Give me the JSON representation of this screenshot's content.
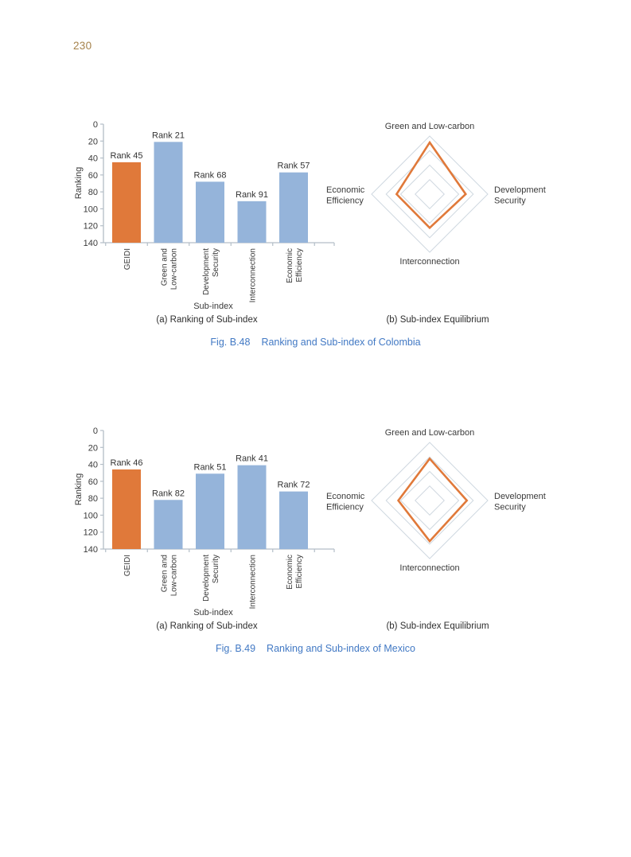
{
  "page": {
    "number": "230"
  },
  "colors": {
    "accent_orange": "#e0793a",
    "bar_blue": "#95b4da",
    "grid_line": "#cfd8e0",
    "axis_line": "#b4bec7",
    "text_dark": "#3a3a3a",
    "caption_blue": "#4279c4",
    "page_number": "#a5824b"
  },
  "figures": [
    {
      "caption_label": "Fig. B.48",
      "caption_text": "Ranking and Sub-index of Colombia",
      "subcaption_a": "(a) Ranking of Sub-index",
      "subcaption_b": "(b) Sub-index Equilibrium"
    },
    {
      "caption_label": "Fig. B.49",
      "caption_text": "Ranking and Sub-index of Mexico",
      "subcaption_a": "(a) Ranking of Sub-index",
      "subcaption_b": "(b) Sub-index Equilibrium"
    }
  ],
  "chart_data": [
    {
      "id": "colombia-bar",
      "type": "bar",
      "title": "",
      "xlabel": "Sub-index",
      "ylabel": "Ranking",
      "categories": [
        "GEIDI",
        "Green and Low-carbon",
        "Development Security",
        "Interconnection",
        "Economic Efficiency"
      ],
      "category_lines": [
        [
          "GEIDI"
        ],
        [
          "Green and",
          "Low-carbon"
        ],
        [
          "Development",
          "Security"
        ],
        [
          "Interconnection"
        ],
        [
          "Economic",
          "Efficiency"
        ]
      ],
      "values": [
        45,
        21,
        68,
        91,
        57
      ],
      "bar_labels": [
        "Rank 45",
        "Rank 21",
        "Rank 68",
        "Rank 91",
        "Rank 57"
      ],
      "yticks": [
        0,
        20,
        40,
        60,
        80,
        100,
        120,
        140
      ],
      "ylim": [
        0,
        140
      ],
      "y_inverted": true,
      "grid": false,
      "bar_colors": [
        "#e0793a",
        "#95b4da",
        "#95b4da",
        "#95b4da",
        "#95b4da"
      ]
    },
    {
      "id": "colombia-radar",
      "type": "radar",
      "axes": [
        "Green and Low-carbon",
        "Development Security",
        "Interconnection",
        "Economic Efficiency"
      ],
      "axis_lines": [
        [
          "Green and Low-carbon"
        ],
        [
          "Development",
          "Security"
        ],
        [
          "Interconnection"
        ],
        [
          "Economic",
          "Efficiency"
        ]
      ],
      "values": [
        0.89,
        0.62,
        0.58,
        0.57
      ],
      "value_max": 1.0,
      "grid_levels": [
        0.25,
        0.5,
        0.75,
        1.0
      ],
      "line_color": "#e0793a"
    },
    {
      "id": "mexico-bar",
      "type": "bar",
      "title": "",
      "xlabel": "Sub-index",
      "ylabel": "Ranking",
      "categories": [
        "GEIDI",
        "Green and Low-carbon",
        "Development Security",
        "Interconnection",
        "Economic Efficiency"
      ],
      "category_lines": [
        [
          "GEIDI"
        ],
        [
          "Green and",
          "Low-carbon"
        ],
        [
          "Development",
          "Security"
        ],
        [
          "Interconnection"
        ],
        [
          "Economic",
          "Efficiency"
        ]
      ],
      "values": [
        46,
        82,
        51,
        41,
        72
      ],
      "bar_labels": [
        "Rank 46",
        "Rank 82",
        "Rank 51",
        "Rank 41",
        "Rank 72"
      ],
      "yticks": [
        0,
        20,
        40,
        60,
        80,
        100,
        120,
        140
      ],
      "ylim": [
        0,
        140
      ],
      "y_inverted": true,
      "grid": false,
      "bar_colors": [
        "#e0793a",
        "#95b4da",
        "#95b4da",
        "#95b4da",
        "#95b4da"
      ]
    },
    {
      "id": "mexico-radar",
      "type": "radar",
      "axes": [
        "Green and Low-carbon",
        "Development Security",
        "Interconnection",
        "Economic Efficiency"
      ],
      "axis_lines": [
        [
          "Green and Low-carbon"
        ],
        [
          "Development",
          "Security"
        ],
        [
          "Interconnection"
        ],
        [
          "Economic",
          "Efficiency"
        ]
      ],
      "values": [
        0.72,
        0.64,
        0.7,
        0.54
      ],
      "value_max": 1.0,
      "grid_levels": [
        0.25,
        0.5,
        0.75,
        1.0
      ],
      "line_color": "#e0793a"
    }
  ]
}
